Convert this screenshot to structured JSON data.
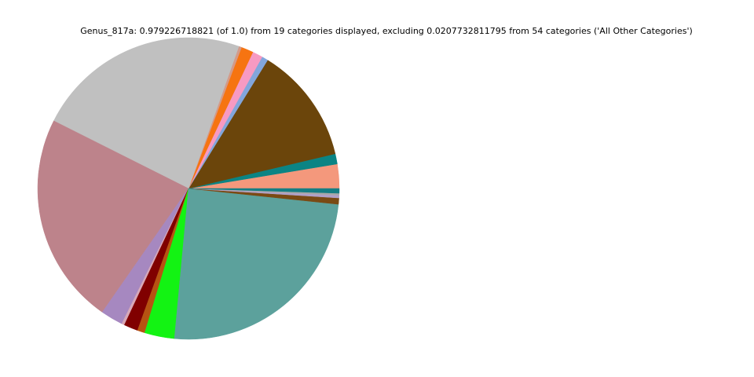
{
  "chart_data": {
    "type": "pie",
    "title": "Genus_817a: 0.979226718821 (of 1.0) from 19 categories displayed, excluding 0.0207732811795 from 54 categories ('All Other Categories')",
    "categories": [
      null,
      null,
      null,
      null,
      null,
      null,
      null,
      null,
      null,
      null,
      null,
      null,
      null,
      null,
      null,
      null,
      null,
      null,
      null
    ],
    "values": [
      0.026,
      0.011,
      0.125,
      0.0067,
      0.011,
      0.013,
      0.003,
      0.23,
      0.227,
      0.024,
      0.003,
      0.015,
      0.008,
      0.032,
      0.248,
      0.0067,
      0.003,
      0.002,
      0.005
    ],
    "colors": [
      "#f4987c",
      "#0b8484",
      "#6b450b",
      "#82a6dc",
      "#f79ac2",
      "#f67411",
      "#d49a88",
      "#c0c0c0",
      "#bd838b",
      "#a688c0",
      "#d8a8b8",
      "#800000",
      "#b65412",
      "#13f313",
      "#5ca19c",
      "#7a4a14",
      "#b0a0c8",
      "#a8a8a8",
      "#157e84"
    ]
  }
}
